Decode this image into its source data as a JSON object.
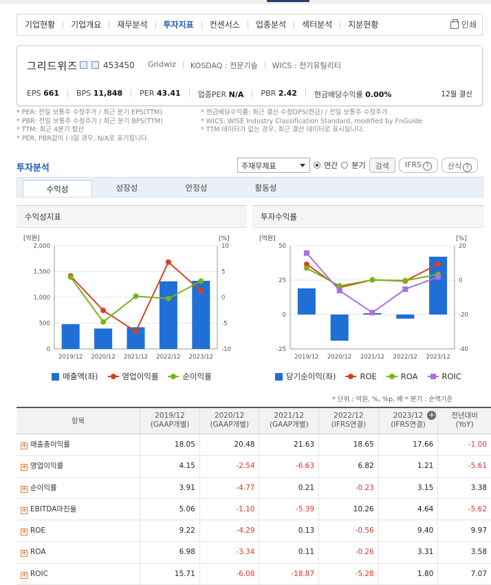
{
  "nav": {
    "items": [
      "기업현황",
      "기업개요",
      "재무분석",
      "투자지표",
      "컨센서스",
      "업종분석",
      "섹터분석",
      "지분현황"
    ],
    "active_index": 3,
    "print_label": "인쇄"
  },
  "company": {
    "name": "그리드위즈",
    "code": "453450",
    "eng_name": "Gridwiz",
    "market": "KOSDAQ : 전문기술",
    "wics": "WICS : 전기유틸리티",
    "stats": [
      {
        "label": "EPS",
        "value": "661"
      },
      {
        "label": "BPS",
        "value": "11,848"
      },
      {
        "label": "PER",
        "value": "43.41"
      },
      {
        "label": "업종PER",
        "value": "N/A"
      },
      {
        "label": "PBR",
        "value": "2.42"
      },
      {
        "label": "현금배당수익률",
        "value": "0.00%"
      }
    ],
    "settle": "12월 결산"
  },
  "notes": {
    "left": [
      "* PER: 전일 보통주 수정주가 / 최근 분기 EPS(TTM)",
      "* PBR: 전일 보통주 수정주가 / 최근 분기 BPS(TTM)",
      "* TTM: 최근 4분기 합산",
      "* PER, PBR값이 (-)일 경우, N/A로 표기됩니다."
    ],
    "right": [
      "* 현금배당수익률: 최근 결산 수정DPS(현금) / 전일 보통주 수정주가",
      "* WICS: WISE Industry Classification Standard, modified by FnGuide",
      "* TTM 데이터가 없는 경우, 최근 결산 데이터로 표시됩니다."
    ]
  },
  "section": {
    "title": "투자분석",
    "select_value": "주재무제표",
    "radio_annual": "연간",
    "radio_quarter": "분기",
    "search": "검색",
    "ifrs": "IFRS",
    "formula": "산식"
  },
  "subtabs": [
    "수익성",
    "성장성",
    "안정성",
    "활동성"
  ],
  "panels": {
    "left_title": "수익성지표",
    "right_title": "투자수익률"
  },
  "chart_data": [
    {
      "type": "bar",
      "categories": [
        "2019/12",
        "2020/12",
        "2021/12",
        "2022/12",
        "2023/12"
      ],
      "left_axis_unit": "[억원]",
      "right_axis_unit": "[%]",
      "ylim": [
        0,
        2000
      ],
      "y2lim": [
        -10,
        10
      ],
      "yticks": [
        "2,000",
        "1,500",
        "1,000",
        "500",
        "0"
      ],
      "y2ticks": [
        "10",
        "5",
        "0",
        "-5",
        "-10"
      ],
      "series": [
        {
          "name": "매출액(좌)",
          "kind": "bar",
          "axis": "left",
          "color": "#1f6fd6",
          "values": [
            480,
            395,
            420,
            1310,
            1320
          ]
        },
        {
          "name": "영업이익률",
          "kind": "line",
          "axis": "right",
          "color": "#d9411e",
          "values": [
            4.15,
            -2.54,
            -6.63,
            6.82,
            1.21
          ]
        },
        {
          "name": "순이익률",
          "kind": "line",
          "axis": "right",
          "color": "#7ab317",
          "values": [
            3.91,
            -4.77,
            0.21,
            -0.23,
            3.15
          ]
        }
      ]
    },
    {
      "type": "bar",
      "categories": [
        "2019/12",
        "2020/12",
        "2021/12",
        "2022/12",
        "2023/12"
      ],
      "left_axis_unit": "[억원]",
      "right_axis_unit": "[%]",
      "ylim": [
        -25,
        50
      ],
      "y2lim": [
        -40,
        20
      ],
      "yticks": [
        "50",
        "25",
        "0",
        "-25"
      ],
      "y2ticks": [
        "20",
        "0",
        "-20",
        "-40"
      ],
      "series": [
        {
          "name": "당기순이익(좌)",
          "kind": "bar",
          "axis": "left",
          "color": "#1f6fd6",
          "values": [
            19,
            -19,
            1,
            -3,
            42
          ]
        },
        {
          "name": "ROE",
          "kind": "line",
          "axis": "right",
          "color": "#d9411e",
          "values": [
            9.22,
            -4.29,
            0.13,
            -0.56,
            9.4
          ]
        },
        {
          "name": "ROA",
          "kind": "line",
          "axis": "right",
          "color": "#7ab317",
          "values": [
            6.98,
            -3.34,
            0.11,
            -0.26,
            3.31
          ]
        },
        {
          "name": "ROIC",
          "kind": "line",
          "axis": "right",
          "color": "#a970e0",
          "marker": "square",
          "values": [
            15.71,
            -6.08,
            -18.87,
            -5.28,
            1.8
          ]
        }
      ]
    }
  ],
  "table": {
    "unit_note": "* 단위 : 억원, %, %p, 배   * 분기 : 순액기준",
    "headers": [
      {
        "l1": "항목",
        "l2": ""
      },
      {
        "l1": "2019/12",
        "l2": "(GAAP개별)"
      },
      {
        "l1": "2020/12",
        "l2": "(GAAP개별)"
      },
      {
        "l1": "2021/12",
        "l2": "(GAAP개별)"
      },
      {
        "l1": "2022/12",
        "l2": "(IFRS연결)"
      },
      {
        "l1": "2023/12",
        "l2": "(IFRS연결)"
      },
      {
        "l1": "전년대비",
        "l2": "(YoY)"
      }
    ],
    "rows": [
      {
        "label": "매출총이익률",
        "values": [
          "18.05",
          "20.48",
          "21.63",
          "18.65",
          "17.66",
          "-1.00"
        ]
      },
      {
        "label": "영업이익률",
        "values": [
          "4.15",
          "-2.54",
          "-6.63",
          "6.82",
          "1.21",
          "-5.61"
        ]
      },
      {
        "label": "순이익률",
        "values": [
          "3.91",
          "-4.77",
          "0.21",
          "-0.23",
          "3.15",
          "3.38"
        ]
      },
      {
        "label": "EBITDA마진율",
        "values": [
          "5.06",
          "-1.10",
          "-5.39",
          "10.26",
          "4.64",
          "-5.62"
        ]
      },
      {
        "label": "ROE",
        "values": [
          "9.22",
          "-4.29",
          "0.13",
          "-0.56",
          "9.40",
          "9.97"
        ]
      },
      {
        "label": "ROA",
        "values": [
          "6.98",
          "-3.34",
          "0.11",
          "-0.26",
          "3.31",
          "3.58"
        ]
      },
      {
        "label": "ROIC",
        "values": [
          "15.71",
          "-6.08",
          "-18.87",
          "-5.28",
          "1.80",
          "7.07"
        ]
      }
    ]
  }
}
